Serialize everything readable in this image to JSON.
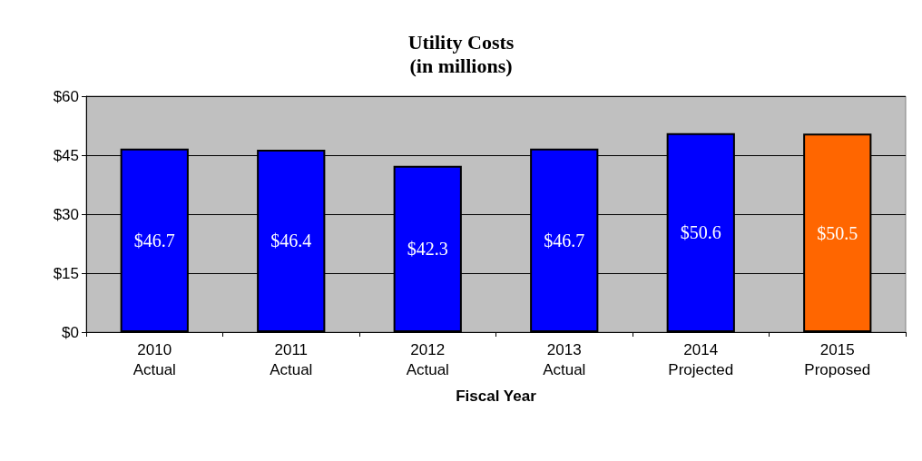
{
  "chart_data": {
    "type": "bar",
    "title": "Utility Costs",
    "subtitle": "(in millions)",
    "xlabel": "Fiscal Year",
    "categories": [
      "2010\nActual",
      "2011\nActual",
      "2012\nActual",
      "2013\nActual",
      "2014\nProjected",
      "2015\nProposed"
    ],
    "values": [
      46.7,
      46.4,
      42.3,
      46.7,
      50.6,
      50.5
    ],
    "colors": [
      "#0000ff",
      "#0000ff",
      "#0000ff",
      "#0000ff",
      "#0000ff",
      "#ff6600"
    ],
    "value_labels": [
      "$46.7",
      "$46.4",
      "$42.3",
      "$46.7",
      "$50.6",
      "$50.5"
    ],
    "ylim": [
      0,
      60
    ],
    "yticks": [
      {
        "value": 0,
        "label": "$0"
      },
      {
        "value": 15,
        "label": "$15"
      },
      {
        "value": 30,
        "label": "$30"
      },
      {
        "value": 45,
        "label": "$45"
      },
      {
        "value": 60,
        "label": "$60"
      }
    ],
    "grid": "y"
  }
}
